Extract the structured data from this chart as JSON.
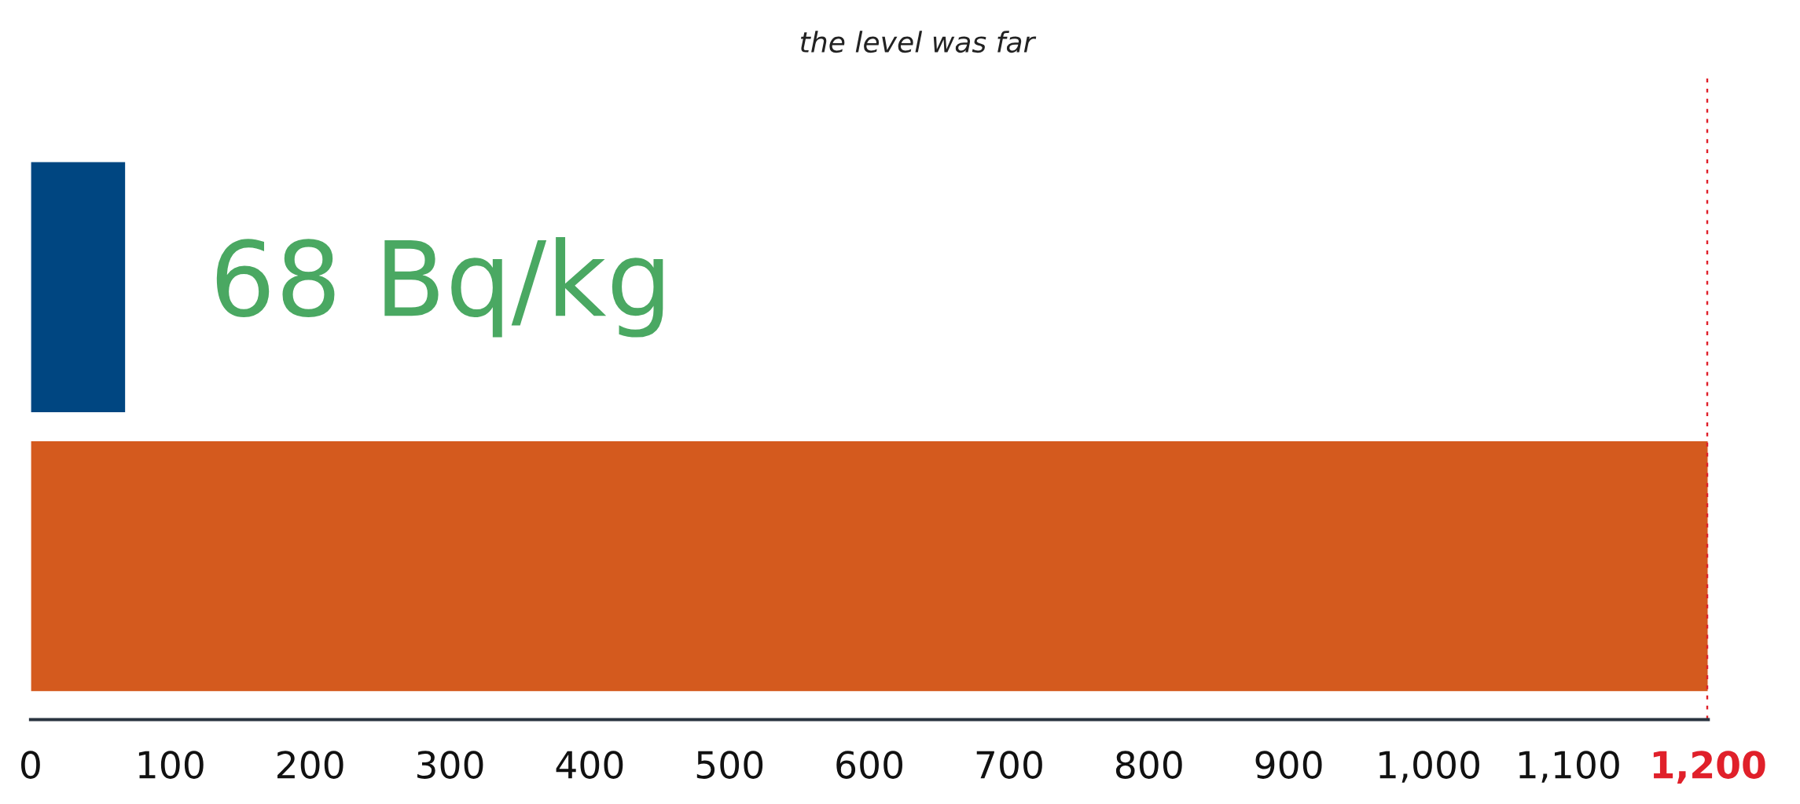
{
  "chart_data": {
    "type": "bar",
    "orientation": "horizontal",
    "categories": [
      null,
      null
    ],
    "values": [
      68,
      1200
    ],
    "colors": [
      "#004681",
      "#d45a1e"
    ],
    "value_labels": [
      "68 Bq/kg",
      null
    ],
    "xlim": [
      0,
      1200
    ],
    "xticks": [
      0,
      100,
      200,
      300,
      400,
      500,
      600,
      700,
      800,
      900,
      {
        "value": 1000,
        "label": "1,000"
      },
      {
        "value": 1100,
        "label": "1,100"
      },
      {
        "value": 1200,
        "label": "1,200"
      }
    ],
    "ref_lines": [
      {
        "axis": "x",
        "value": 1200,
        "color": "#e0202a",
        "line_style": "dotted"
      }
    ],
    "annotations": [
      "the level was far"
    ],
    "grid": false,
    "legend": false
  }
}
